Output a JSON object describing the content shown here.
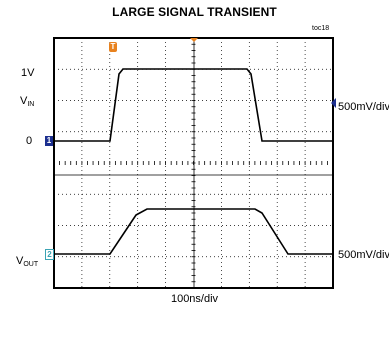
{
  "title": "LARGE SIGNAL TRANSIENT",
  "figure_id": "toc18",
  "labels": {
    "one_volt": "1V",
    "vin_main": "V",
    "vin_sub": "IN",
    "zero": "0",
    "vout_main": "V",
    "vout_sub": "OUT",
    "ch1_scale": "500mV/div",
    "ch2_scale": "500mV/div",
    "time_scale": "100ns/div"
  },
  "markers": {
    "ch1": "1",
    "ch2": "2",
    "trigger": "T"
  },
  "colors": {
    "trace": "#000000",
    "grid": "#000000",
    "ch1_marker": "#1c2f8f",
    "ch2_marker": "#3aa3b3",
    "trigger_marker": "#e8821e",
    "right_marker": "#1c2f8f"
  }
}
